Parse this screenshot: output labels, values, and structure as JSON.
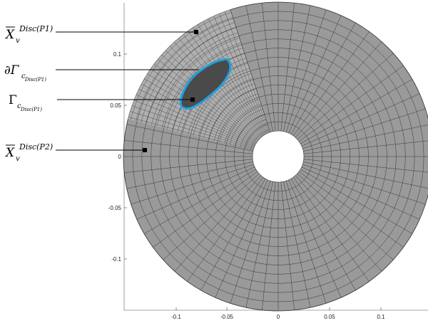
{
  "figure": {
    "x_ticks": [
      "-0.1",
      "-0.05",
      "0",
      "0.05",
      "0.1"
    ],
    "y_ticks": [
      "0.1",
      "0.05",
      "0",
      "-0.05",
      "-0.1"
    ],
    "colors": {
      "mesh_fill": "#9a9a9a",
      "refined_fill": "#aeaeae",
      "mesh_line": "#2b2b2b",
      "inclusion_fill": "#4a4a4a",
      "boundary": "#1fa0e0",
      "marker": "#000000"
    },
    "annotations": [
      {
        "id": "xv-p1",
        "base": "X",
        "base_overline": true,
        "sub": "v",
        "sup": "Disc(P1)"
      },
      {
        "id": "dgamma",
        "base": "∂Γ",
        "sub": "c",
        "subsub": "Disc(P1)"
      },
      {
        "id": "gamma",
        "base": "Γ",
        "sub": "c",
        "subsub": "Disc(P1)"
      },
      {
        "id": "xv-p2",
        "base": "X",
        "base_overline": true,
        "sub": "v",
        "sup": "Disc(P2)"
      }
    ]
  }
}
